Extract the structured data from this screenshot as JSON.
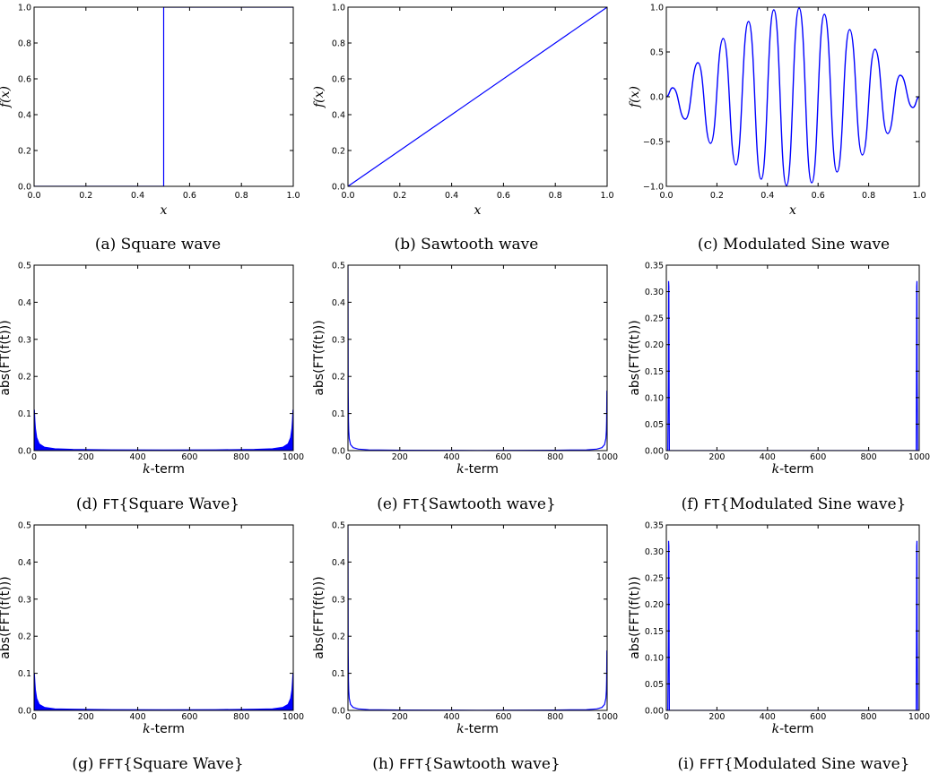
{
  "colors": {
    "line": "#0000ff",
    "axes": "#000000"
  },
  "chart_data": [
    {
      "id": "a",
      "type": "line",
      "caption": "(a) Square wave",
      "xlabel": "x",
      "ylabel": "f(x)",
      "xlim": [
        0,
        1
      ],
      "ylim": [
        0,
        1
      ],
      "xticks": [
        0.0,
        0.2,
        0.4,
        0.6,
        0.8,
        1.0
      ],
      "yticks": [
        0.0,
        0.2,
        0.4,
        0.6,
        0.8,
        1.0
      ],
      "x_tick_labels": [
        "0.0",
        "0.2",
        "0.4",
        "0.6",
        "0.8",
        "1.0"
      ],
      "y_tick_labels": [
        "0.0",
        "0.2",
        "0.4",
        "0.6",
        "0.8",
        "1.0"
      ],
      "series": [
        {
          "x": [
            0,
            0.5,
            0.5,
            0.5,
            1.0
          ],
          "y": [
            0,
            0,
            0.75,
            1,
            1
          ]
        }
      ]
    },
    {
      "id": "b",
      "type": "line",
      "caption": "(b) Sawtooth wave",
      "xlabel": "x",
      "ylabel": "f(x)",
      "xlim": [
        0,
        1
      ],
      "ylim": [
        0,
        1
      ],
      "xticks": [
        0.0,
        0.2,
        0.4,
        0.6,
        0.8,
        1.0
      ],
      "yticks": [
        0.0,
        0.2,
        0.4,
        0.6,
        0.8,
        1.0
      ],
      "x_tick_labels": [
        "0.0",
        "0.2",
        "0.4",
        "0.6",
        "0.8",
        "1.0"
      ],
      "y_tick_labels": [
        "0.0",
        "0.2",
        "0.4",
        "0.6",
        "0.8",
        "1.0"
      ],
      "series": [
        {
          "x": [
            0,
            1
          ],
          "y": [
            0,
            1
          ]
        }
      ]
    },
    {
      "id": "c",
      "type": "line",
      "caption": "(c) Modulated Sine wave",
      "xlabel": "x",
      "ylabel": "f(x)",
      "xlim": [
        0,
        1
      ],
      "ylim": [
        -1,
        1
      ],
      "xticks": [
        0.0,
        0.2,
        0.4,
        0.6,
        0.8,
        1.0
      ],
      "yticks": [
        -1.0,
        -0.5,
        0.0,
        0.5,
        1.0
      ],
      "x_tick_labels": [
        "0.0",
        "0.2",
        "0.4",
        "0.6",
        "0.8",
        "1.0"
      ],
      "y_tick_labels": [
        "−1.0",
        "−0.5",
        "0.0",
        "0.5",
        "1.0"
      ],
      "series": [
        {
          "x": [
            0.0,
            0.025,
            0.075,
            0.125,
            0.175,
            0.225,
            0.275,
            0.325,
            0.375,
            0.425,
            0.475,
            0.525,
            0.575,
            0.625,
            0.675,
            0.725,
            0.775,
            0.825,
            0.875,
            0.925,
            0.975,
            1.0
          ],
          "y": [
            0.0,
            0.1,
            -0.25,
            0.38,
            -0.52,
            0.65,
            -0.76,
            0.84,
            -0.92,
            0.97,
            -0.99,
            0.99,
            -0.96,
            0.92,
            -0.84,
            0.75,
            -0.65,
            0.53,
            -0.41,
            0.24,
            -0.12,
            0.0
          ]
        }
      ]
    },
    {
      "id": "d",
      "type": "line",
      "caption_prefix": "(d) ",
      "caption_op": "FT",
      "caption_body": "{Square Wave}",
      "xlabel": "k-term",
      "ylabel": "abs(FT(f(t)))",
      "xlim": [
        0,
        1000
      ],
      "ylim": [
        0,
        0.5
      ],
      "xticks": [
        0,
        200,
        400,
        600,
        800,
        1000
      ],
      "yticks": [
        0.0,
        0.1,
        0.2,
        0.3,
        0.4,
        0.5
      ],
      "x_tick_labels": [
        "0",
        "200",
        "400",
        "600",
        "800",
        "1000"
      ],
      "y_tick_labels": [
        "0.0",
        "0.1",
        "0.2",
        "0.3",
        "0.4",
        "0.5"
      ],
      "series": [
        {
          "x": [
            0,
            1,
            3,
            5,
            10,
            20,
            40,
            80,
            150,
            300,
            500,
            700,
            850,
            920,
            960,
            980,
            990,
            995,
            997,
            999,
            1000
          ],
          "y": [
            0.0,
            0.11,
            0.08,
            0.06,
            0.035,
            0.018,
            0.009,
            0.005,
            0.003,
            0.002,
            0.0015,
            0.002,
            0.003,
            0.005,
            0.009,
            0.018,
            0.035,
            0.06,
            0.08,
            0.11,
            0.0
          ]
        }
      ]
    },
    {
      "id": "e",
      "type": "line",
      "caption_prefix": "(e) ",
      "caption_op": "FT",
      "caption_body": "{Sawtooth wave}",
      "xlabel": "k-term",
      "ylabel": "abs(FT(f(t)))",
      "xlim": [
        0,
        1000
      ],
      "ylim": [
        0,
        0.5
      ],
      "xticks": [
        0,
        200,
        400,
        600,
        800,
        1000
      ],
      "yticks": [
        0.0,
        0.1,
        0.2,
        0.3,
        0.4,
        0.5
      ],
      "x_tick_labels": [
        "0",
        "200",
        "400",
        "600",
        "800",
        "1000"
      ],
      "y_tick_labels": [
        "0.0",
        "0.1",
        "0.2",
        "0.3",
        "0.4",
        "0.5"
      ],
      "series": [
        {
          "x": [
            0,
            1,
            2,
            3,
            5,
            10,
            20,
            40,
            80,
            200,
            500,
            800,
            920,
            960,
            980,
            990,
            995,
            997,
            998,
            999,
            1000
          ],
          "y": [
            0.5,
            0.16,
            0.08,
            0.053,
            0.032,
            0.016,
            0.008,
            0.004,
            0.002,
            0.001,
            0.0005,
            0.001,
            0.002,
            0.004,
            0.008,
            0.016,
            0.032,
            0.053,
            0.08,
            0.16,
            0.16
          ]
        }
      ]
    },
    {
      "id": "f",
      "type": "line",
      "caption_prefix": "(f) ",
      "caption_op": "FT",
      "caption_body": "{Modulated Sine wave}",
      "xlabel": "k-term",
      "ylabel": "abs(FT(f(t)))",
      "xlim": [
        0,
        1000
      ],
      "ylim": [
        0,
        0.35
      ],
      "xticks": [
        0,
        200,
        400,
        600,
        800,
        1000
      ],
      "yticks": [
        0.0,
        0.05,
        0.1,
        0.15,
        0.2,
        0.25,
        0.3,
        0.35
      ],
      "x_tick_labels": [
        "0",
        "200",
        "400",
        "600",
        "800",
        "1000"
      ],
      "y_tick_labels": [
        "0.00",
        "0.05",
        "0.10",
        "0.15",
        "0.20",
        "0.25",
        "0.30",
        "0.35"
      ],
      "series": [
        {
          "x": [
            0,
            6,
            8,
            9,
            10,
            11,
            12,
            14,
            20,
            980,
            986,
            988,
            989,
            990,
            991,
            992,
            994,
            1000
          ],
          "y": [
            0,
            0,
            0.13,
            0.32,
            0.31,
            0.13,
            0.0,
            0,
            0,
            0,
            0,
            0.0,
            0.13,
            0.31,
            0.32,
            0.13,
            0,
            0
          ]
        }
      ]
    },
    {
      "id": "g",
      "type": "line",
      "caption_prefix": "(g) ",
      "caption_op": "FFT",
      "caption_body": "{Square Wave}",
      "xlabel": "k-term",
      "ylabel": "abs(FFT(f(t)))",
      "xlim": [
        0,
        1000
      ],
      "ylim": [
        0,
        0.5
      ],
      "xticks": [
        0,
        200,
        400,
        600,
        800,
        1000
      ],
      "yticks": [
        0.0,
        0.1,
        0.2,
        0.3,
        0.4,
        0.5
      ],
      "x_tick_labels": [
        "0",
        "200",
        "400",
        "600",
        "800",
        "1000"
      ],
      "y_tick_labels": [
        "0.0",
        "0.1",
        "0.2",
        "0.3",
        "0.4",
        "0.5"
      ],
      "series": [
        {
          "x": [
            0,
            1,
            3,
            5,
            10,
            20,
            40,
            80,
            150,
            300,
            500,
            700,
            850,
            920,
            960,
            980,
            990,
            995,
            997,
            999,
            1000
          ],
          "y": [
            0.0,
            0.1,
            0.075,
            0.055,
            0.032,
            0.016,
            0.008,
            0.004,
            0.003,
            0.002,
            0.0015,
            0.002,
            0.003,
            0.004,
            0.008,
            0.016,
            0.032,
            0.055,
            0.075,
            0.1,
            0.0
          ]
        }
      ]
    },
    {
      "id": "h",
      "type": "line",
      "caption_prefix": "(h) ",
      "caption_op": "FFT",
      "caption_body": "{Sawtooth wave}",
      "xlabel": "k-term",
      "ylabel": "abs(FFT(f(t)))",
      "xlim": [
        0,
        1000
      ],
      "ylim": [
        0,
        0.5
      ],
      "xticks": [
        0,
        200,
        400,
        600,
        800,
        1000
      ],
      "yticks": [
        0.0,
        0.1,
        0.2,
        0.3,
        0.4,
        0.5
      ],
      "x_tick_labels": [
        "0",
        "200",
        "400",
        "600",
        "800",
        "1000"
      ],
      "y_tick_labels": [
        "0.0",
        "0.1",
        "0.2",
        "0.3",
        "0.4",
        "0.5"
      ],
      "series": [
        {
          "x": [
            0,
            1,
            2,
            3,
            5,
            10,
            20,
            40,
            80,
            200,
            500,
            800,
            920,
            960,
            980,
            990,
            995,
            997,
            998,
            999,
            1000
          ],
          "y": [
            0.5,
            0.16,
            0.08,
            0.053,
            0.032,
            0.016,
            0.008,
            0.004,
            0.002,
            0.001,
            0.0005,
            0.001,
            0.002,
            0.004,
            0.008,
            0.016,
            0.032,
            0.053,
            0.08,
            0.16,
            0.16
          ]
        }
      ]
    },
    {
      "id": "i",
      "type": "line",
      "caption_prefix": "(i) ",
      "caption_op": "FFT",
      "caption_body": "{Modulated Sine wave}",
      "xlabel": "k-term",
      "ylabel": "abs(FFT(f(t)))",
      "xlim": [
        0,
        1000
      ],
      "ylim": [
        0,
        0.35
      ],
      "xticks": [
        0,
        200,
        400,
        600,
        800,
        1000
      ],
      "yticks": [
        0.0,
        0.05,
        0.1,
        0.15,
        0.2,
        0.25,
        0.3,
        0.35
      ],
      "x_tick_labels": [
        "0",
        "200",
        "400",
        "600",
        "800",
        "1000"
      ],
      "y_tick_labels": [
        "0.00",
        "0.05",
        "0.10",
        "0.15",
        "0.20",
        "0.25",
        "0.30",
        "0.35"
      ],
      "series": [
        {
          "x": [
            0,
            6,
            8,
            9,
            10,
            11,
            12,
            14,
            20,
            980,
            986,
            988,
            989,
            990,
            991,
            992,
            994,
            1000
          ],
          "y": [
            0,
            0,
            0.13,
            0.32,
            0.31,
            0.13,
            0.0,
            0,
            0,
            0,
            0,
            0.0,
            0.13,
            0.31,
            0.32,
            0.13,
            0,
            0
          ]
        }
      ]
    }
  ]
}
